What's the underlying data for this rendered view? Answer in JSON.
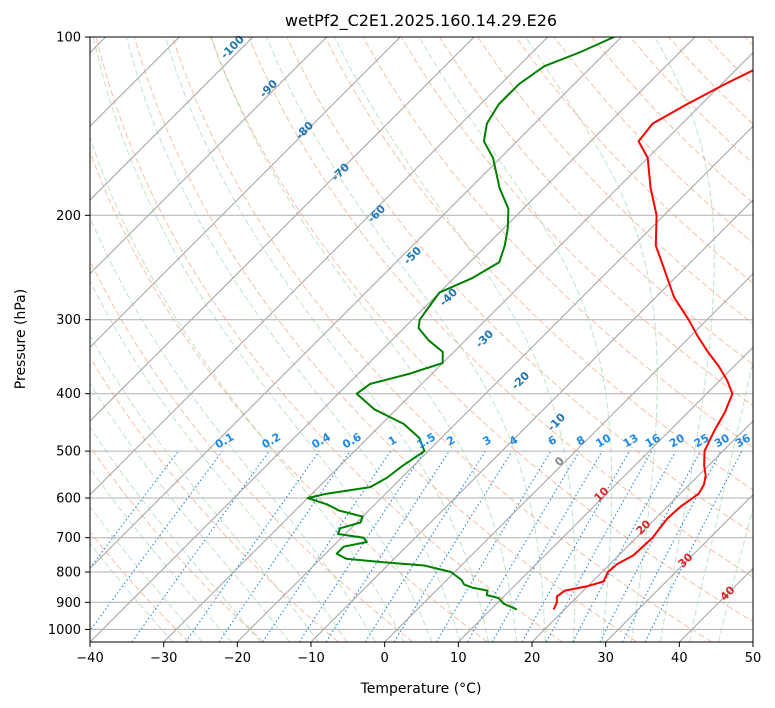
{
  "chart_data": {
    "type": "line",
    "title": "wetPf2_C2E1.2025.160.14.29.E26",
    "xlabel": "Temperature (°C)",
    "ylabel": "Pressure (hPa)",
    "xlim": [
      -40,
      50
    ],
    "ylim": [
      1050,
      100
    ],
    "y_scale": "log",
    "x_ticks": [
      -40,
      -30,
      -20,
      -10,
      0,
      10,
      20,
      30,
      40,
      50
    ],
    "y_ticks": [
      100,
      200,
      300,
      400,
      500,
      600,
      700,
      800,
      900,
      1000
    ],
    "grid": true,
    "skew": true,
    "series": [
      {
        "color": "#ff0000",
        "points": [
          [
            18.5,
            925
          ],
          [
            18.0,
            900
          ],
          [
            17.2,
            880
          ],
          [
            17.5,
            860
          ],
          [
            20.0,
            845
          ],
          [
            21.5,
            830
          ],
          [
            20.8,
            800
          ],
          [
            21.0,
            775
          ],
          [
            22.0,
            750
          ],
          [
            22.2,
            700
          ],
          [
            21.6,
            650
          ],
          [
            21.8,
            620
          ],
          [
            22.5,
            590
          ],
          [
            22.0,
            570
          ],
          [
            21.0,
            550
          ],
          [
            19.5,
            530
          ],
          [
            17.5,
            500
          ],
          [
            16.0,
            460
          ],
          [
            15.0,
            430
          ],
          [
            13.5,
            400
          ],
          [
            11.0,
            380
          ],
          [
            8.0,
            360
          ],
          [
            4.5,
            340
          ],
          [
            1.0,
            320
          ],
          [
            -2.5,
            300
          ],
          [
            -7.5,
            275
          ],
          [
            -12.0,
            250
          ],
          [
            -17.0,
            225
          ],
          [
            -21.0,
            200
          ],
          [
            -25.5,
            180
          ],
          [
            -30.0,
            160
          ],
          [
            -33.5,
            150
          ],
          [
            -34.0,
            140
          ],
          [
            -32.0,
            130
          ],
          [
            -29.5,
            120
          ],
          [
            -27.0,
            112
          ],
          [
            -24.5,
            106
          ],
          [
            -22.0,
            100
          ]
        ]
      },
      {
        "color": "#008000",
        "points": [
          [
            13.5,
            925
          ],
          [
            11.0,
            905
          ],
          [
            9.5,
            885
          ],
          [
            7.5,
            875
          ],
          [
            7.0,
            860
          ],
          [
            4.5,
            850
          ],
          [
            3.0,
            840
          ],
          [
            2.0,
            825
          ],
          [
            -0.5,
            800
          ],
          [
            -5.0,
            780
          ],
          [
            -11.0,
            770
          ],
          [
            -16.5,
            760
          ],
          [
            -18.5,
            745
          ],
          [
            -18.5,
            725
          ],
          [
            -16.0,
            712
          ],
          [
            -17.0,
            700
          ],
          [
            -21.0,
            690
          ],
          [
            -21.5,
            675
          ],
          [
            -19.5,
            660
          ],
          [
            -20.0,
            645
          ],
          [
            -24.0,
            630
          ],
          [
            -26.5,
            615
          ],
          [
            -30.0,
            600
          ],
          [
            -28.0,
            590
          ],
          [
            -23.0,
            575
          ],
          [
            -22.0,
            555
          ],
          [
            -21.5,
            530
          ],
          [
            -20.5,
            500
          ],
          [
            -23.0,
            475
          ],
          [
            -27.0,
            450
          ],
          [
            -33.0,
            425
          ],
          [
            -37.5,
            400
          ],
          [
            -37.0,
            385
          ],
          [
            -33.0,
            370
          ],
          [
            -30.0,
            355
          ],
          [
            -31.5,
            340
          ],
          [
            -35.0,
            325
          ],
          [
            -38.0,
            310
          ],
          [
            -39.0,
            300
          ],
          [
            -39.5,
            285
          ],
          [
            -40.0,
            270
          ],
          [
            -37.5,
            255
          ],
          [
            -36.0,
            240
          ],
          [
            -37.5,
            225
          ],
          [
            -39.5,
            210
          ],
          [
            -42.0,
            195
          ],
          [
            -46.0,
            180
          ],
          [
            -51.0,
            160
          ],
          [
            -54.5,
            150
          ],
          [
            -56.5,
            140
          ],
          [
            -57.5,
            130
          ],
          [
            -57.5,
            120
          ],
          [
            -56.5,
            112
          ],
          [
            -53.5,
            106
          ],
          [
            -51.0,
            100
          ]
        ]
      }
    ],
    "dry_adiabat_labels": [
      "-100",
      "-90",
      "-80",
      "-70",
      "-60",
      "-50",
      "-40",
      "-30",
      "-20",
      "-10"
    ],
    "moist_adiabat_labels": [
      "0",
      "10",
      "20",
      "30",
      "40"
    ],
    "mixing_ratio_labels": [
      "0.1",
      "0.2",
      "0.4",
      "0.6",
      "1",
      "1.5",
      "2",
      "3",
      "4",
      "6",
      "8",
      "10",
      "13",
      "16",
      "20",
      "25",
      "30",
      "36"
    ]
  }
}
